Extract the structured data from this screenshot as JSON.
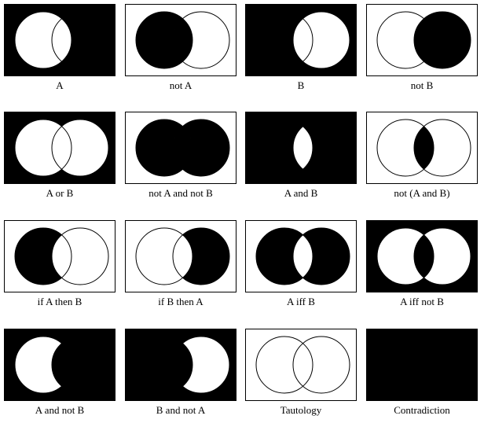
{
  "colors": {
    "fill": "#000000",
    "background": "#ffffff",
    "stroke": "#000000"
  },
  "diagrams": [
    {
      "id": "a",
      "caption": "A",
      "region_filled": {
        "outside": true,
        "a_only": false,
        "b_only": true,
        "both": false
      }
    },
    {
      "id": "not-a",
      "caption": "not A",
      "region_filled": {
        "outside": false,
        "a_only": true,
        "b_only": false,
        "both": true
      }
    },
    {
      "id": "b",
      "caption": "B",
      "region_filled": {
        "outside": true,
        "a_only": true,
        "b_only": false,
        "both": false
      }
    },
    {
      "id": "not-b",
      "caption": "not B",
      "region_filled": {
        "outside": false,
        "a_only": false,
        "b_only": true,
        "both": true
      }
    },
    {
      "id": "a-or-b",
      "caption": "A or B",
      "region_filled": {
        "outside": true,
        "a_only": false,
        "b_only": false,
        "both": false
      }
    },
    {
      "id": "not-a-and-not-b",
      "caption": "not A and not B",
      "region_filled": {
        "outside": false,
        "a_only": true,
        "b_only": true,
        "both": true
      }
    },
    {
      "id": "a-and-b",
      "caption": "A and B",
      "region_filled": {
        "outside": true,
        "a_only": true,
        "b_only": true,
        "both": false
      }
    },
    {
      "id": "not-a-and-b",
      "caption": "not (A and B)",
      "region_filled": {
        "outside": false,
        "a_only": false,
        "b_only": false,
        "both": true
      }
    },
    {
      "id": "if-a-then-b",
      "caption": "if A then B",
      "region_filled": {
        "outside": false,
        "a_only": true,
        "b_only": false,
        "both": false
      }
    },
    {
      "id": "if-b-then-a",
      "caption": "if B then A",
      "region_filled": {
        "outside": false,
        "a_only": false,
        "b_only": true,
        "both": false
      }
    },
    {
      "id": "a-iff-b",
      "caption": "A iff B",
      "region_filled": {
        "outside": false,
        "a_only": true,
        "b_only": true,
        "both": false
      }
    },
    {
      "id": "a-iff-not-b",
      "caption": "A iff not B",
      "region_filled": {
        "outside": true,
        "a_only": false,
        "b_only": false,
        "both": true
      }
    },
    {
      "id": "a-and-not-b",
      "caption": "A and not B",
      "region_filled": {
        "outside": true,
        "a_only": false,
        "b_only": true,
        "both": true
      }
    },
    {
      "id": "b-and-not-a",
      "caption": "B and not A",
      "region_filled": {
        "outside": true,
        "a_only": true,
        "b_only": false,
        "both": true
      }
    },
    {
      "id": "tautology",
      "caption": "Tautology",
      "region_filled": {
        "outside": false,
        "a_only": false,
        "b_only": false,
        "both": false
      }
    },
    {
      "id": "contradiction",
      "caption": "Contradiction",
      "region_filled": {
        "outside": true,
        "a_only": true,
        "b_only": true,
        "both": true
      }
    }
  ]
}
